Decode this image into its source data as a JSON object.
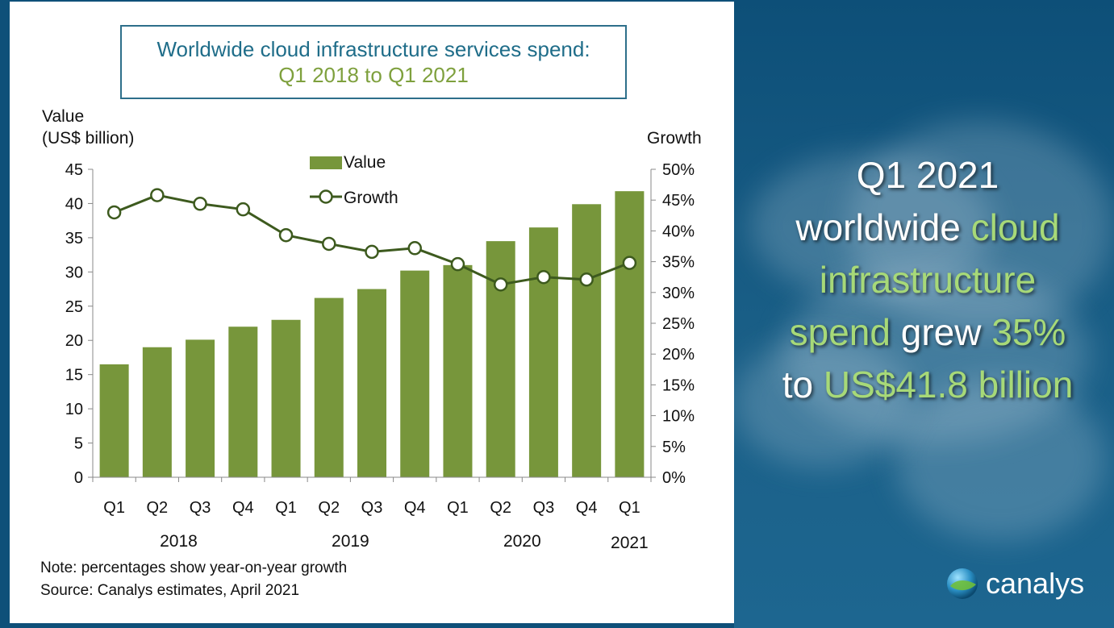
{
  "chart_data": {
    "type": "bar",
    "title": "Worldwide cloud infrastructure services spend:",
    "subtitle": "Q1 2018 to Q1 2021",
    "ylabel_left": [
      "Value",
      "(US$ billion)"
    ],
    "ylabel_right": "Growth",
    "categories": [
      "Q1",
      "Q2",
      "Q3",
      "Q4",
      "Q1",
      "Q2",
      "Q3",
      "Q4",
      "Q1",
      "Q2",
      "Q3",
      "Q4",
      "Q1"
    ],
    "years": [
      {
        "label": "2018",
        "start": 0,
        "end": 3
      },
      {
        "label": "2019",
        "start": 4,
        "end": 7
      },
      {
        "label": "2020",
        "start": 8,
        "end": 11
      },
      {
        "label": "2021",
        "start": 12,
        "end": 12
      }
    ],
    "series": [
      {
        "name": "Value",
        "type": "bar",
        "axis": "left",
        "values": [
          16.5,
          19.0,
          20.1,
          22.0,
          23.0,
          26.2,
          27.5,
          30.2,
          31.0,
          34.5,
          36.5,
          39.9,
          41.8
        ]
      },
      {
        "name": "Growth",
        "type": "line",
        "axis": "right",
        "values": [
          43.0,
          45.8,
          44.4,
          43.5,
          39.3,
          37.9,
          36.6,
          37.2,
          34.6,
          31.3,
          32.5,
          32.1,
          34.8
        ]
      }
    ],
    "ylim_left": [
      0,
      45
    ],
    "ylim_right": [
      0,
      50
    ],
    "yticks_left": [
      "0",
      "5",
      "10",
      "15",
      "20",
      "25",
      "30",
      "35",
      "40",
      "45"
    ],
    "yticks_right": [
      "0%",
      "5%",
      "10%",
      "15%",
      "20%",
      "25%",
      "30%",
      "35%",
      "40%",
      "45%",
      "50%"
    ],
    "legend": [
      "Value",
      "Growth"
    ],
    "legend_position": "top-center",
    "grid": false,
    "colors": {
      "bar": "#77963b",
      "line": "#3d5a1e",
      "marker_fill": "#ffffff",
      "title_blue": "#1f6d89",
      "title_green": "#7ea03d"
    }
  },
  "notes": {
    "note": "Note: percentages show year-on-year growth",
    "source": "Source: Canalys estimates, April 2021"
  },
  "headline": {
    "w1": "Q1 2021",
    "w2": "worldwide",
    "w3": "cloud",
    "w4": "infrastructure",
    "w5": "spend",
    "w6": "grew",
    "w7": "35%",
    "w8": "to",
    "w9": "US$41.8 billion"
  },
  "logo": {
    "text": "canalys",
    "icon": "globe-icon"
  }
}
